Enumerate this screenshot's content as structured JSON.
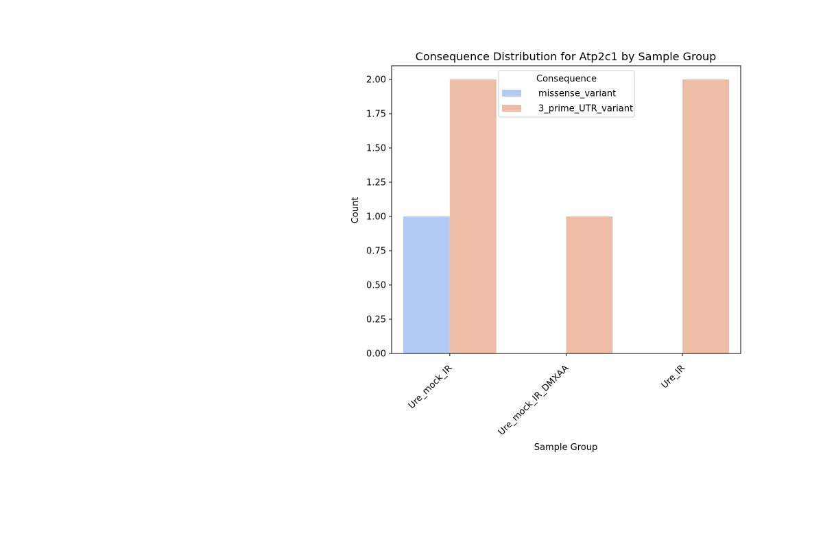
{
  "chart_data": {
    "type": "bar",
    "title": "Consequence Distribution for Atp2c1 by Sample Group",
    "xlabel": "Sample Group",
    "ylabel": "Count",
    "categories": [
      "Ure_mock_IR",
      "Ure_mock_IR_DMXAA",
      "Ure_IR"
    ],
    "series": [
      {
        "name": "missense_variant",
        "values": [
          1,
          0,
          0
        ],
        "color": "#b5c9f5"
      },
      {
        "name": "3_prime_UTR_variant",
        "values": [
          2,
          1,
          2
        ],
        "color": "#edbda6"
      }
    ],
    "ylim": [
      0,
      2.1
    ],
    "yticks": [
      0.0,
      0.25,
      0.5,
      0.75,
      1.0,
      1.25,
      1.5,
      1.75,
      2.0
    ],
    "ytick_labels": [
      "0.00",
      "0.25",
      "0.50",
      "0.75",
      "1.00",
      "1.25",
      "1.50",
      "1.75",
      "2.00"
    ],
    "grid": false,
    "legend": {
      "title": "Consequence",
      "placement": "top-center"
    },
    "xtick_rotation": 45
  }
}
